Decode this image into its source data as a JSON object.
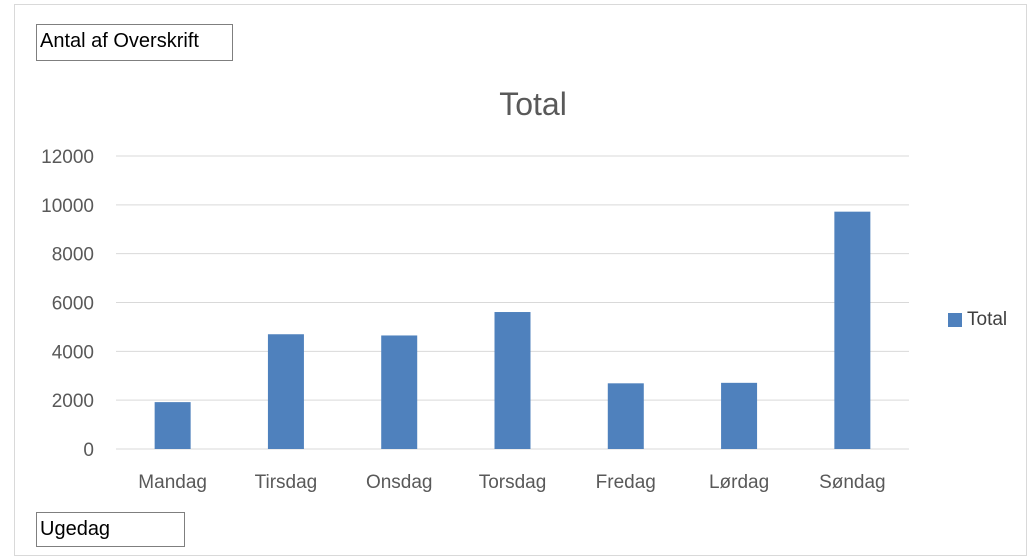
{
  "filter_field": {
    "label": "Antal af Overskrift"
  },
  "axis_field": {
    "label": "Ugedag"
  },
  "legend": {
    "label": "Total",
    "placement": "right"
  },
  "colors": {
    "series": "#4f81bd",
    "grid": "#d9d9d9",
    "text": "#595959"
  },
  "chart_data": {
    "type": "bar",
    "title": "Total",
    "categories": [
      "Mandag",
      "Tirsdag",
      "Onsdag",
      "Torsdag",
      "Fredag",
      "Lørdag",
      "Søndag"
    ],
    "series": [
      {
        "name": "Total",
        "values": [
          1920,
          4700,
          4650,
          5610,
          2690,
          2710,
          9720
        ]
      }
    ],
    "ylim": [
      0,
      12000
    ],
    "yticks": [
      0,
      2000,
      4000,
      6000,
      8000,
      10000,
      12000
    ],
    "grid": true
  }
}
